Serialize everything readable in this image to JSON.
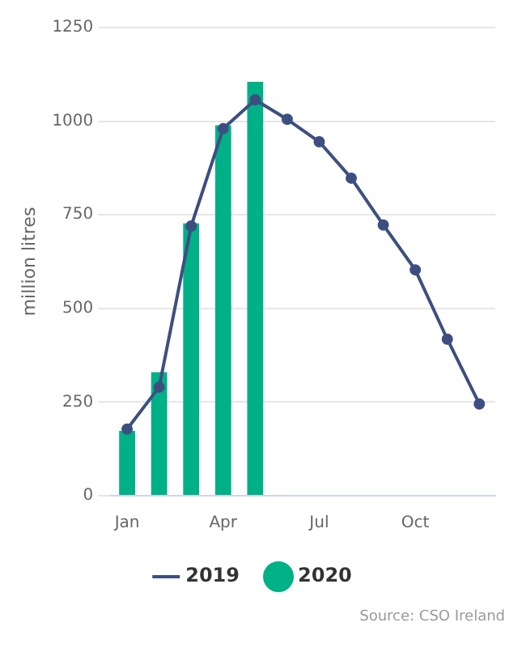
{
  "chart_data": {
    "type": "bar",
    "ylabel": "million litres",
    "categories": [
      "Jan",
      null,
      null,
      "Apr",
      null,
      null,
      "Jul",
      null,
      null,
      "Oct",
      null,
      null
    ],
    "series": [
      {
        "name": "2019",
        "type": "line",
        "color": "#3d4f80",
        "values": [
          178,
          290,
          720,
          980,
          1057,
          1005,
          945,
          848,
          723,
          603,
          418,
          245
        ]
      },
      {
        "name": "2020",
        "color": "#00b087",
        "values": [
          173,
          330,
          727,
          989,
          1105,
          null,
          null,
          null,
          null,
          null,
          null,
          null
        ]
      }
    ],
    "ylim": [
      0,
      1250
    ],
    "yticks": [
      0,
      250,
      500,
      750,
      1000,
      1250
    ],
    "grid": "y",
    "legend": "bottom",
    "marker": "circle",
    "line_style": "solid",
    "annotations": [
      "Source: CSO Ireland"
    ]
  }
}
